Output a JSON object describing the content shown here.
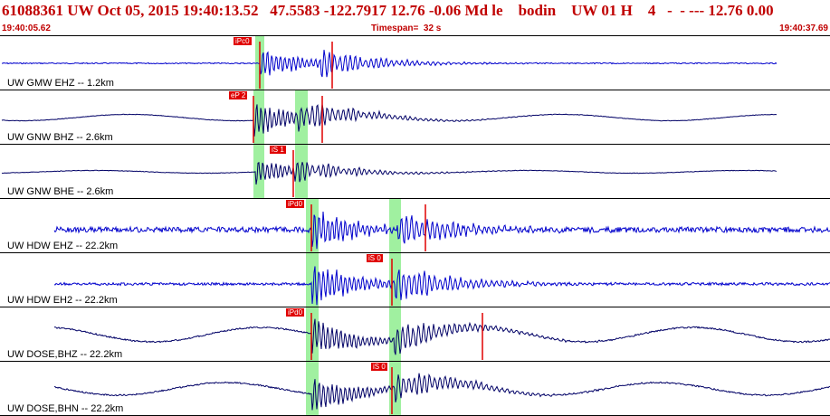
{
  "header": {
    "title": "61088361 UW Oct 05, 2015 19:40:13.52   47.5583 -122.7917 12.76 -0.06 Md le    bodin    UW 01 H    4   -  - --- 12.76 0.00",
    "start_time": "19:40:05.62",
    "timespan": "Timespan=  32 s",
    "end_time": "19:40:37.69"
  },
  "colors": {
    "header_text": "#c00000",
    "trace_blue": "#0000cc",
    "trace_navy": "#000066",
    "pick": "#e00000",
    "window": "#a0f0a0"
  },
  "channels": [
    {
      "label": "UW GMW EHZ -- 1.2km",
      "pick": "iPc0",
      "color": "blue"
    },
    {
      "label": "UW GNW BHZ -- 2.6km",
      "pick": "eP 2",
      "color": "navy"
    },
    {
      "label": "UW GNW BHE -- 2.6km",
      "pick": "iS 1",
      "color": "navy"
    },
    {
      "label": "UW HDW EHZ -- 22.2km",
      "pick": "iPd0",
      "color": "blue"
    },
    {
      "label": "UW HDW EH2 -- 22.2km",
      "pick": "iS 0",
      "color": "blue"
    },
    {
      "label": "UW DOSE,BHZ -- 22.2km",
      "pick": "iPd0",
      "color": "navy"
    },
    {
      "label": "UW DOSE,BHN -- 22.2km",
      "pick": "iS 0",
      "color": "navy"
    }
  ]
}
